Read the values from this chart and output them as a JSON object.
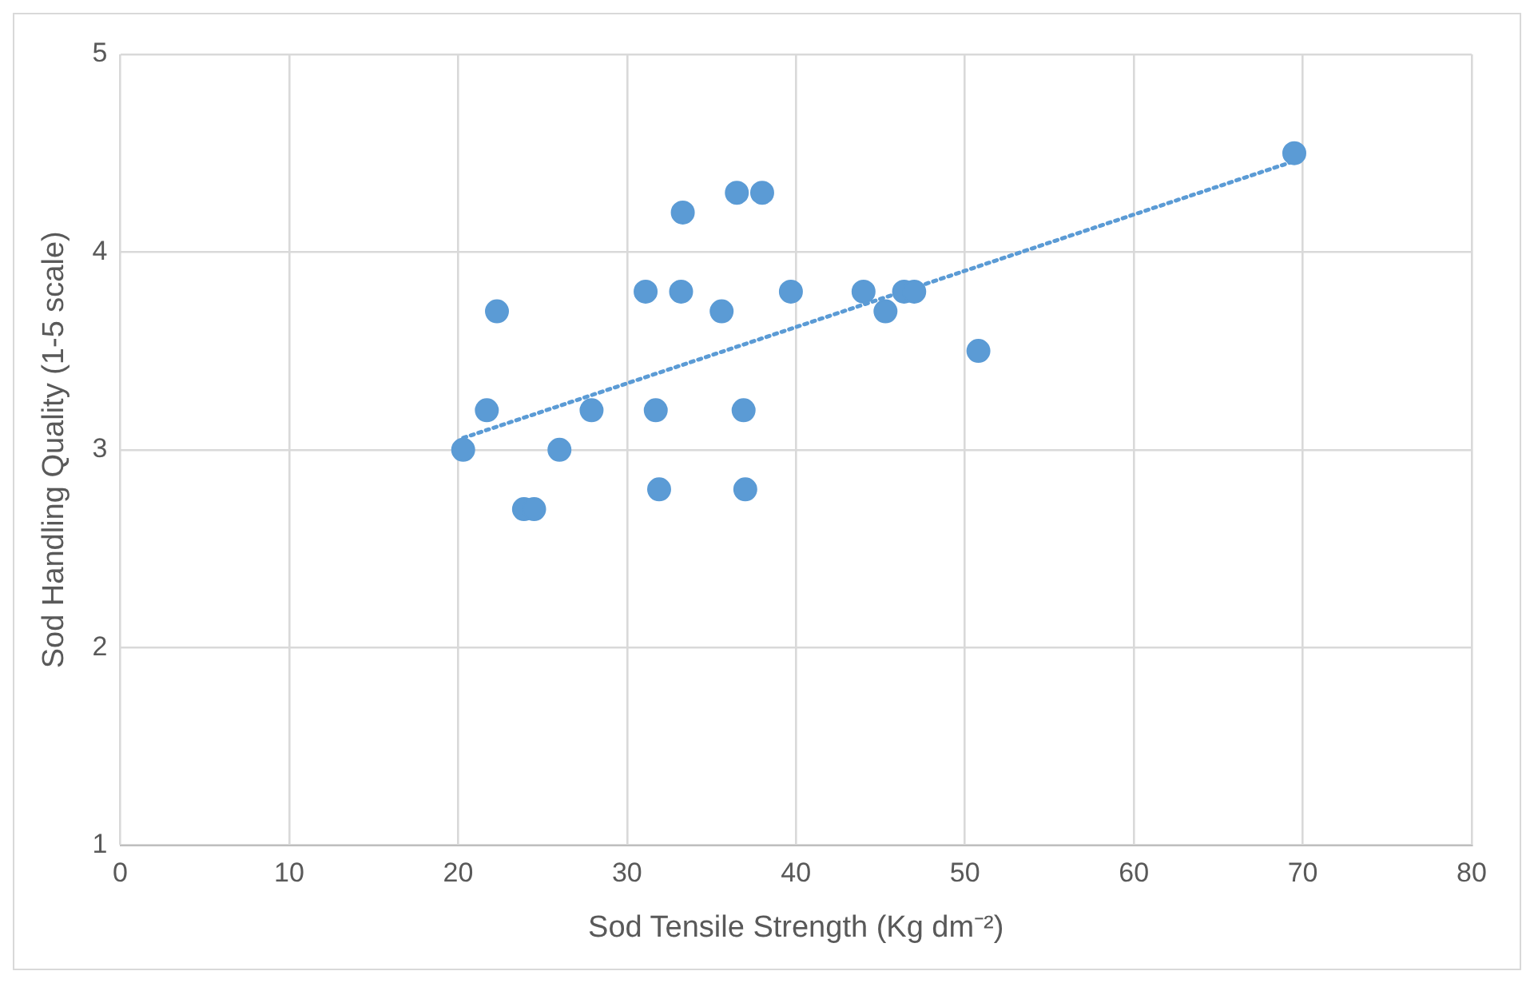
{
  "chart_data": {
    "type": "scatter",
    "xlabel": "Sod Tensile Strength (Kg dm⁻²)",
    "ylabel": "Sod Handling Quality (1-5 scale)",
    "xlim": [
      0,
      80
    ],
    "xticks": [
      0,
      10,
      20,
      30,
      40,
      50,
      60,
      70,
      80
    ],
    "ylim": [
      1,
      5
    ],
    "yticks": [
      1,
      2,
      3,
      4,
      5
    ],
    "grid": true,
    "legend": false,
    "series": [
      {
        "type": "scatter",
        "color": "#5b9bd5",
        "marker": "circle",
        "x": [
          20.3,
          21.7,
          22.3,
          23.9,
          24.5,
          26.0,
          27.9,
          31.1,
          31.7,
          31.9,
          33.2,
          33.3,
          35.6,
          36.5,
          36.9,
          37.0,
          38.0,
          39.7,
          44.0,
          45.3,
          46.4,
          47.0,
          50.8,
          69.5
        ],
        "values": [
          3.0,
          3.2,
          3.7,
          2.7,
          2.7,
          3.0,
          3.2,
          3.8,
          3.2,
          2.8,
          3.8,
          4.2,
          3.7,
          4.3,
          3.2,
          2.8,
          4.3,
          3.8,
          3.8,
          3.7,
          3.8,
          3.8,
          3.5,
          4.5
        ]
      },
      {
        "type": "line",
        "color": "#5b9bd5",
        "marker": "none",
        "line_style": "dotted",
        "x": [
          20.3,
          69.5
        ],
        "values": [
          3.06,
          4.46
        ]
      }
    ]
  }
}
